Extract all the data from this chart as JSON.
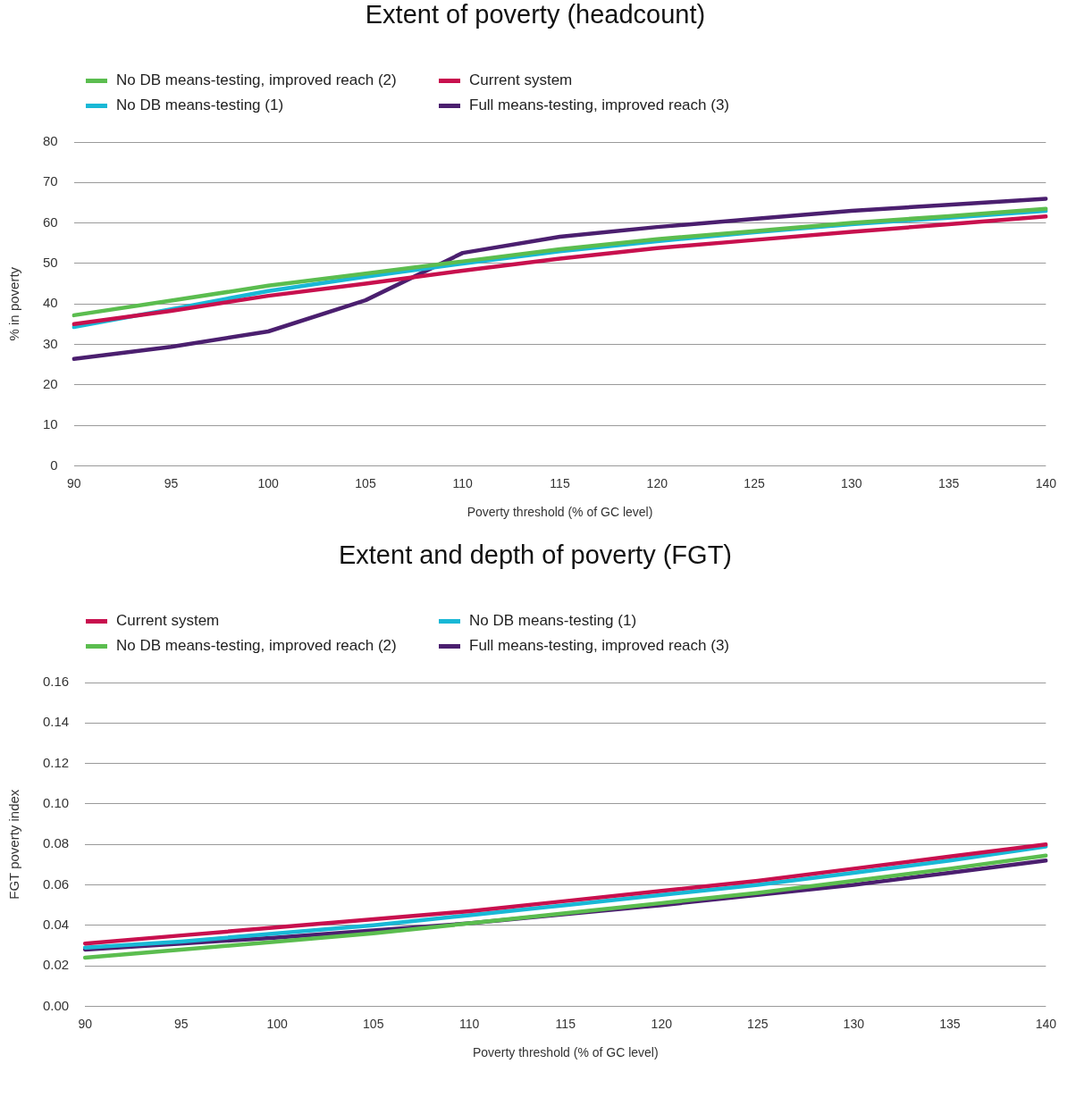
{
  "chart_data": [
    {
      "type": "line",
      "title": "Extent of poverty (headcount)",
      "xlabel": "Poverty threshold (% of GC level)",
      "ylabel": "% in poverty",
      "categories": [
        "90",
        "95",
        "100",
        "105",
        "110",
        "115",
        "120",
        "125",
        "130",
        "135",
        "140"
      ],
      "series": [
        {
          "name": "No DB means-testing, improved reach (2)",
          "color": "#5bbd4f",
          "values": [
            37.2,
            40.8,
            44.5,
            47.5,
            50.5,
            53.5,
            56,
            58,
            60,
            61.7,
            63.5
          ]
        },
        {
          "name": "Current system",
          "color": "#c8104e",
          "values": [
            35,
            38.3,
            42,
            45,
            48.2,
            51.2,
            53.8,
            55.8,
            57.8,
            59.7,
            61.6
          ]
        },
        {
          "name": "No DB means-testing (1)",
          "color": "#19b8d6",
          "values": [
            34.3,
            38.7,
            43.2,
            46.7,
            50,
            53,
            55.5,
            57.7,
            59.7,
            61.3,
            63
          ]
        },
        {
          "name": "Full means-testing, improved reach (3)",
          "color": "#4b1f6f",
          "values": [
            26.4,
            29.4,
            33.2,
            40.9,
            52.6,
            56.6,
            59,
            61,
            63,
            64.5,
            66
          ]
        }
      ],
      "ylim": [
        0,
        80
      ],
      "yticks": [
        0,
        10,
        20,
        30,
        40,
        50,
        60,
        70,
        80
      ],
      "grid": "y",
      "legend": "top left"
    },
    {
      "type": "line",
      "title": "Extent and depth of poverty (FGT)",
      "xlabel": "Poverty threshold (% of GC level)",
      "ylabel": "FGT poverty index",
      "categories": [
        "90",
        "95",
        "100",
        "105",
        "110",
        "115",
        "120",
        "125",
        "130",
        "135",
        "140"
      ],
      "series": [
        {
          "name": "Current system",
          "color": "#c8104e",
          "values": [
            0.031,
            0.035,
            0.039,
            0.043,
            0.047,
            0.052,
            0.057,
            0.062,
            0.068,
            0.074,
            0.08
          ]
        },
        {
          "name": "No DB means-testing (1)",
          "color": "#19b8d6",
          "values": [
            0.029,
            0.032,
            0.036,
            0.04,
            0.045,
            0.05,
            0.055,
            0.06,
            0.066,
            0.072,
            0.079
          ]
        },
        {
          "name": "No DB means-testing, improved reach (2)",
          "color": "#5bbd4f",
          "values": [
            0.024,
            0.028,
            0.032,
            0.036,
            0.041,
            0.046,
            0.051,
            0.056,
            0.062,
            0.068,
            0.0745
          ]
        },
        {
          "name": "Full means-testing, improved reach (3)",
          "color": "#4b1f6f",
          "values": [
            0.028,
            0.031,
            0.034,
            0.0375,
            0.041,
            0.0455,
            0.05,
            0.055,
            0.06,
            0.066,
            0.072
          ]
        }
      ],
      "ylim": [
        0,
        0.16
      ],
      "yticks": [
        {
          "value": 0,
          "label": "0.00"
        },
        {
          "value": 0.02,
          "label": "0.02"
        },
        {
          "value": 0.04,
          "label": "0.04"
        },
        {
          "value": 0.06,
          "label": "0.06"
        },
        {
          "value": 0.08,
          "label": "0.08"
        },
        {
          "value": 0.1,
          "label": "0.10"
        },
        {
          "value": 0.12,
          "label": "0.12"
        },
        {
          "value": 0.14,
          "label": "0.14"
        },
        {
          "value": 0.16,
          "label": "0.16"
        }
      ],
      "grid": "y",
      "legend": "top left"
    }
  ]
}
